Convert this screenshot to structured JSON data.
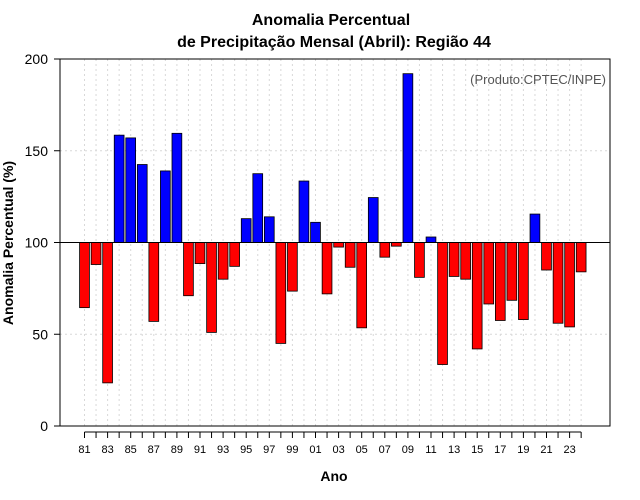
{
  "chart_data": {
    "type": "bar",
    "title": [
      "Anomalia Percentual",
      "de Precipitação Mensal (Abril): Região 44"
    ],
    "xlabel": "Ano",
    "ylabel": "Anomalia Percentual (%)",
    "annotation": "(Produto:CPTEC/INPE)",
    "baseline": 100,
    "ylim": [
      0,
      200
    ],
    "yticks": [
      0,
      50,
      100,
      150,
      200
    ],
    "grid": true,
    "categories": [
      "81",
      "82",
      "83",
      "84",
      "85",
      "86",
      "87",
      "88",
      "89",
      "90",
      "91",
      "92",
      "93",
      "94",
      "95",
      "96",
      "97",
      "98",
      "99",
      "00",
      "01",
      "02",
      "03",
      "04",
      "05",
      "06",
      "07",
      "08",
      "09",
      "10",
      "11",
      "12",
      "13",
      "14",
      "15",
      "16",
      "17",
      "18",
      "19",
      "20",
      "21",
      "22",
      "23",
      "24"
    ],
    "xtick_labels": [
      "81",
      "83",
      "85",
      "87",
      "89",
      "91",
      "93",
      "95",
      "97",
      "99",
      "01",
      "03",
      "05",
      "07",
      "09",
      "11",
      "13",
      "15",
      "17",
      "19",
      "21",
      "23"
    ],
    "values": [
      64.5,
      88,
      23.5,
      158.5,
      157,
      142.5,
      57,
      139,
      159.5,
      71,
      88.5,
      51,
      80,
      87,
      113,
      137.5,
      114,
      45,
      73.5,
      133.5,
      111,
      72,
      97.5,
      86.5,
      53.5,
      124.5,
      92,
      98,
      192,
      81,
      103,
      33.5,
      81.5,
      80,
      42,
      66.5,
      57.5,
      68.5,
      58,
      115.5,
      85,
      56,
      54,
      84
    ],
    "colors": {
      "above": "#0000ff",
      "below": "#ff0000",
      "outline": "#000000",
      "grid": "#d8d8d8"
    }
  }
}
